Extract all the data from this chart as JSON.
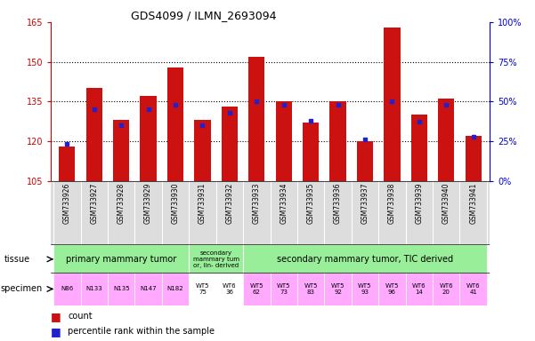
{
  "title": "GDS4099 / ILMN_2693094",
  "samples": [
    "GSM733926",
    "GSM733927",
    "GSM733928",
    "GSM733929",
    "GSM733930",
    "GSM733931",
    "GSM733932",
    "GSM733933",
    "GSM733934",
    "GSM733935",
    "GSM733936",
    "GSM733937",
    "GSM733938",
    "GSM733939",
    "GSM733940",
    "GSM733941"
  ],
  "count_values": [
    118,
    140,
    128,
    137,
    148,
    128,
    133,
    152,
    135,
    127,
    135,
    120,
    163,
    130,
    136,
    122
  ],
  "percentile_values": [
    23,
    45,
    35,
    45,
    48,
    35,
    43,
    50,
    48,
    38,
    48,
    26,
    50,
    37,
    48,
    28
  ],
  "ymin": 105,
  "ymax": 165,
  "yticks": [
    105,
    120,
    135,
    150,
    165
  ],
  "y2ticks_vals": [
    0,
    25,
    50,
    75,
    100
  ],
  "y2ticks_labels": [
    "0%",
    "25%",
    "50%",
    "75%",
    "100%"
  ],
  "bar_color": "#cc1111",
  "dot_color": "#2222cc",
  "tissue_spans": [
    [
      0,
      4,
      "primary mammary tumor",
      "#99ee99"
    ],
    [
      5,
      6,
      "secondary\nmammary tum\nor, lin- derived",
      "#99ee99"
    ],
    [
      7,
      15,
      "secondary mammary tumor, TIC derived",
      "#99ee99"
    ]
  ],
  "specimen_labels": [
    "N86",
    "N133",
    "N135",
    "N147",
    "N182",
    "WT5\n75",
    "WT6\n36",
    "WT5\n62",
    "WT5\n73",
    "WT5\n83",
    "WT5\n92",
    "WT5\n93",
    "WT5\n96",
    "WT6\n14",
    "WT6\n20",
    "WT6\n41"
  ],
  "specimen_colors": [
    "#ffaaff",
    "#ffaaff",
    "#ffaaff",
    "#ffaaff",
    "#ffaaff",
    "#ffffff",
    "#ffffff",
    "#ffaaff",
    "#ffaaff",
    "#ffaaff",
    "#ffaaff",
    "#ffaaff",
    "#ffaaff",
    "#ffaaff",
    "#ffaaff",
    "#ffaaff"
  ],
  "left_label_color": "#cc0000",
  "right_label_color": "#0000cc"
}
